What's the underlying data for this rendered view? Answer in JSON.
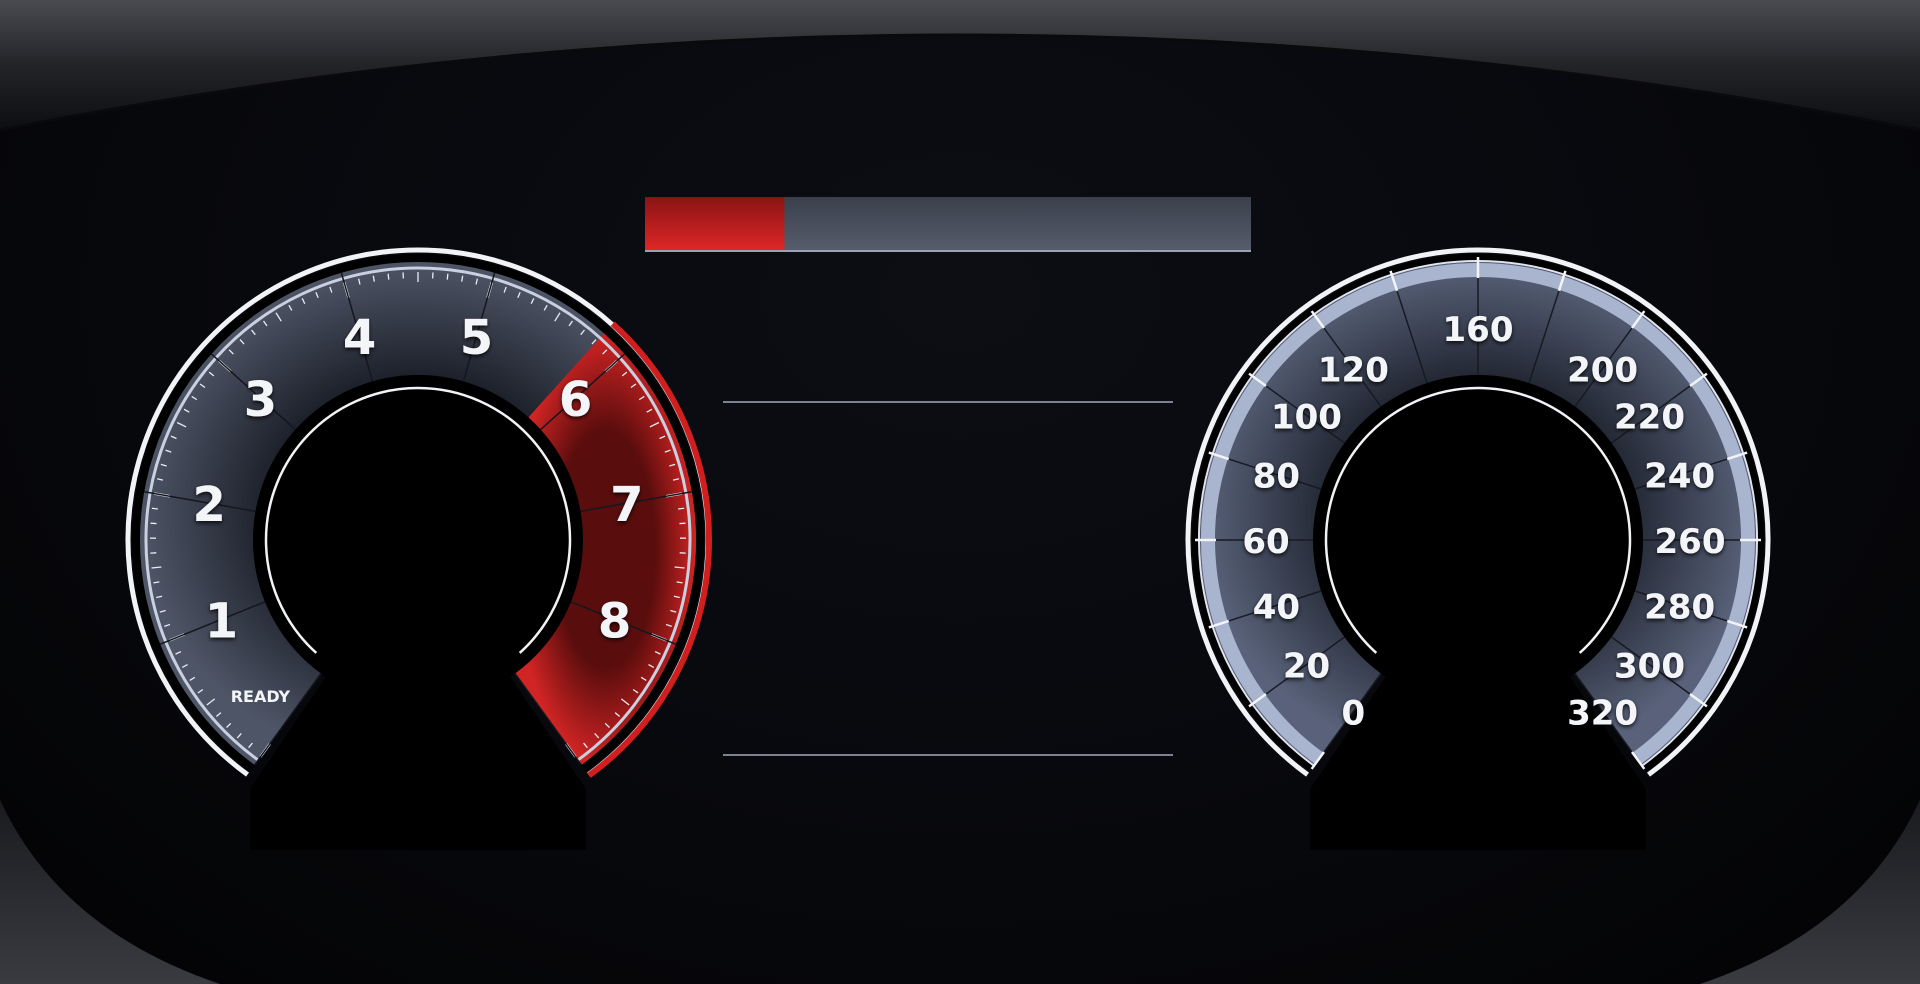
{
  "tachometer": {
    "labels": [
      "1",
      "2",
      "3",
      "4",
      "5",
      "6",
      "7",
      "8"
    ],
    "status": "READY",
    "redline_from": 6
  },
  "speedometer": {
    "labels": [
      "0",
      "20",
      "40",
      "60",
      "80",
      "100",
      "120",
      "160",
      "200",
      "220",
      "240",
      "260",
      "280",
      "300",
      "320"
    ]
  },
  "center": {
    "bar_fill_fraction": 0.23
  },
  "colors": {
    "accent_red": "#d11f1f",
    "gauge_blue": "#a9b4cf",
    "ring_white": "#f2f3f6",
    "background": "#07080c"
  }
}
